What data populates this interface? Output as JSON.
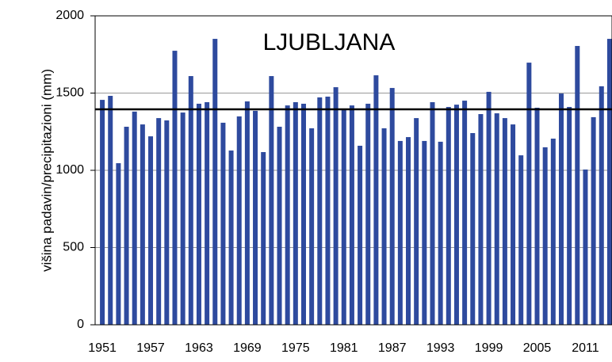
{
  "chart_data": {
    "type": "bar",
    "title": "LJUBLJANA",
    "y_label": "višina padavin/precipitazioni (mm)",
    "categories": [
      1951,
      null,
      null,
      null,
      null,
      null,
      1957,
      null,
      null,
      null,
      null,
      null,
      1963,
      null,
      null,
      null,
      null,
      null,
      1969,
      null,
      null,
      null,
      null,
      null,
      1975,
      null,
      null,
      null,
      null,
      null,
      1981,
      null,
      null,
      null,
      null,
      null,
      1987,
      null,
      null,
      null,
      null,
      null,
      1993,
      null,
      null,
      null,
      null,
      null,
      1999,
      null,
      null,
      null,
      null,
      null,
      2005,
      null,
      null,
      null,
      null,
      null,
      2011,
      null,
      null,
      null
    ],
    "values": [
      1456,
      1482,
      1046,
      1282,
      1380,
      1297,
      1220,
      1338,
      1323,
      1774,
      1374,
      1610,
      1431,
      1441,
      1851,
      1308,
      1128,
      1349,
      1446,
      1385,
      1118,
      1610,
      1282,
      1420,
      1441,
      1431,
      1272,
      1472,
      1477,
      1538,
      1395,
      1420,
      1159,
      1431,
      1615,
      1272,
      1533,
      1190,
      1215,
      1338,
      1190,
      1441,
      1185,
      1410,
      1425,
      1451,
      1241,
      1364,
      1508,
      1369,
      1338,
      1297,
      1097,
      1697,
      1405,
      1149,
      1205,
      1497,
      1410,
      1805,
      1005,
      1344,
      1544,
      1851
    ],
    "color": "#2e4a9e",
    "reference_line": 1395,
    "ylim": [
      0,
      2000
    ],
    "yticks": [
      0,
      500,
      1000,
      1500,
      2000
    ],
    "grid": true
  }
}
